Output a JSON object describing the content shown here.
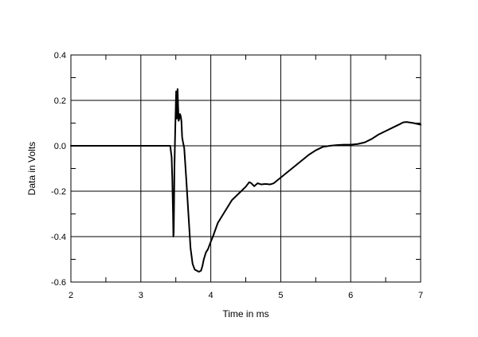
{
  "chart_data": {
    "type": "line",
    "title": "",
    "xlabel": "Time in ms",
    "ylabel": "Data in Volts",
    "xlim": [
      2,
      7
    ],
    "ylim": [
      -0.6,
      0.4
    ],
    "grid": true,
    "x_ticks": [
      2,
      3,
      4,
      5,
      6,
      7
    ],
    "x_tick_labels": [
      "2",
      "3",
      "4",
      "5",
      "6",
      "7"
    ],
    "y_ticks": [
      0.4,
      0.2,
      0.0,
      -0.2,
      -0.4,
      -0.6
    ],
    "y_tick_labels": [
      "0.4",
      "0.2",
      "0.0",
      "-0.2",
      "-0.4",
      "-0.6"
    ],
    "series": [
      {
        "color": "#000000",
        "points": [
          [
            2.0,
            0.0
          ],
          [
            3.42,
            0.0
          ],
          [
            3.44,
            -0.05
          ],
          [
            3.45,
            -0.15
          ],
          [
            3.46,
            -0.3
          ],
          [
            3.465,
            -0.4
          ],
          [
            3.47,
            -0.38
          ],
          [
            3.475,
            -0.25
          ],
          [
            3.48,
            -0.1
          ],
          [
            3.49,
            0.05
          ],
          [
            3.5,
            0.18
          ],
          [
            3.505,
            0.24
          ],
          [
            3.51,
            0.2
          ],
          [
            3.515,
            0.12
          ],
          [
            3.52,
            0.16
          ],
          [
            3.525,
            0.25
          ],
          [
            3.53,
            0.2
          ],
          [
            3.54,
            0.11
          ],
          [
            3.55,
            0.12
          ],
          [
            3.56,
            0.14
          ],
          [
            3.57,
            0.13
          ],
          [
            3.58,
            0.11
          ],
          [
            3.59,
            0.04
          ],
          [
            3.6,
            0.02
          ],
          [
            3.62,
            -0.01
          ],
          [
            3.65,
            -0.15
          ],
          [
            3.68,
            -0.3
          ],
          [
            3.71,
            -0.45
          ],
          [
            3.74,
            -0.52
          ],
          [
            3.77,
            -0.545
          ],
          [
            3.8,
            -0.55
          ],
          [
            3.83,
            -0.555
          ],
          [
            3.86,
            -0.55
          ],
          [
            3.88,
            -0.53
          ],
          [
            3.9,
            -0.5
          ],
          [
            3.93,
            -0.47
          ],
          [
            3.96,
            -0.455
          ],
          [
            3.99,
            -0.43
          ],
          [
            4.03,
            -0.4
          ],
          [
            4.1,
            -0.34
          ],
          [
            4.2,
            -0.29
          ],
          [
            4.3,
            -0.24
          ],
          [
            4.4,
            -0.21
          ],
          [
            4.5,
            -0.18
          ],
          [
            4.55,
            -0.16
          ],
          [
            4.58,
            -0.165
          ],
          [
            4.62,
            -0.178
          ],
          [
            4.67,
            -0.165
          ],
          [
            4.72,
            -0.17
          ],
          [
            4.78,
            -0.168
          ],
          [
            4.85,
            -0.17
          ],
          [
            4.9,
            -0.165
          ],
          [
            5.0,
            -0.14
          ],
          [
            5.1,
            -0.115
          ],
          [
            5.2,
            -0.09
          ],
          [
            5.3,
            -0.065
          ],
          [
            5.4,
            -0.04
          ],
          [
            5.5,
            -0.02
          ],
          [
            5.6,
            -0.005
          ],
          [
            5.7,
            0.0
          ],
          [
            5.8,
            0.003
          ],
          [
            5.9,
            0.005
          ],
          [
            6.0,
            0.005
          ],
          [
            6.1,
            0.008
          ],
          [
            6.2,
            0.015
          ],
          [
            6.3,
            0.03
          ],
          [
            6.4,
            0.05
          ],
          [
            6.5,
            0.065
          ],
          [
            6.6,
            0.08
          ],
          [
            6.7,
            0.095
          ],
          [
            6.75,
            0.103
          ],
          [
            6.8,
            0.105
          ],
          [
            6.9,
            0.1
          ],
          [
            7.0,
            0.093
          ]
        ]
      }
    ]
  }
}
